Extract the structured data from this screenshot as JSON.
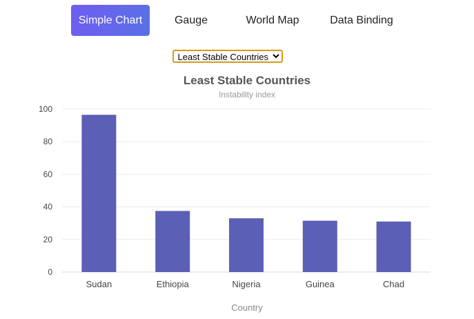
{
  "tabs": [
    {
      "label": "Simple Chart",
      "active": true
    },
    {
      "label": "Gauge",
      "active": false
    },
    {
      "label": "World Map",
      "active": false
    },
    {
      "label": "Data Binding",
      "active": false
    }
  ],
  "selector": {
    "selected": "Least Stable Countries"
  },
  "colors": {
    "bar": "#5b5fb5",
    "accent": "#6c63ee"
  },
  "chart_data": {
    "type": "bar",
    "title": "Least Stable Countries",
    "subtitle": "Instability index",
    "xlabel": "Country",
    "ylabel": "",
    "categories": [
      "Sudan",
      "Ethiopia",
      "Nigeria",
      "Guinea",
      "Chad"
    ],
    "values": [
      96.5,
      37.5,
      33,
      31.5,
      31
    ],
    "ylim": [
      0,
      100
    ],
    "yticks": [
      0,
      20,
      40,
      60,
      80,
      100
    ],
    "grid": true,
    "legend": "none"
  }
}
